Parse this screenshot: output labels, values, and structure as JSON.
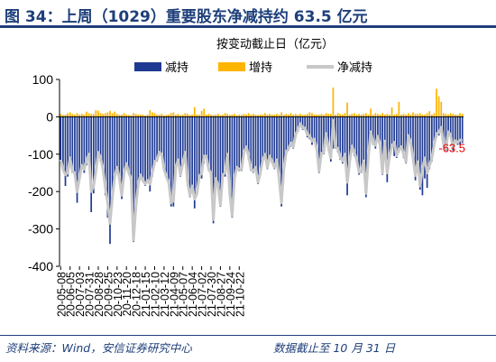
{
  "figure": {
    "title": "图 34：上周（1029）重要股东净减持约 63.5 亿元",
    "source": "资料来源：Wind，安信证券研究中心",
    "cutoff": "数据截止至 10 月 31 日"
  },
  "colors": {
    "decrease": "#1f3a93",
    "increase": "#ffb400",
    "net": "#c8c8c8",
    "callout": "#e00000",
    "frame": "#1e3f7a"
  },
  "chart_data": {
    "type": "bar",
    "title": "按变动截止日（亿元）",
    "legend": {
      "placement": "top-right",
      "entries": [
        "减持",
        "增持",
        "净减持"
      ]
    },
    "ylim": [
      -400,
      100
    ],
    "yticks": [
      100,
      0,
      -100,
      -200,
      -300,
      -400
    ],
    "xtick_labels": [
      "20-05-08",
      "20-06-05",
      "20-07-03",
      "20-07-31",
      "20-08-28",
      "20-09-25",
      "20-10-23",
      "20-11-20",
      "20-12-18",
      "21-01-15",
      "21-02-10",
      "21-03-12",
      "21-04-09",
      "21-05-07",
      "21-06-04",
      "21-07-02",
      "21-07-30",
      "21-08-27",
      "21-09-24",
      "21-10-22"
    ],
    "ticks_every": 4,
    "annotation": "-63.5",
    "series": [
      {
        "name": "减持",
        "values": [
          -115,
          -140,
          -185,
          -160,
          -115,
          -150,
          -160,
          -230,
          -170,
          -135,
          -150,
          -130,
          -110,
          -255,
          -205,
          -150,
          -105,
          -120,
          -150,
          -210,
          -270,
          -340,
          -220,
          -170,
          -140,
          -170,
          -220,
          -160,
          -130,
          -155,
          -175,
          -335,
          -250,
          -185,
          -160,
          -175,
          -185,
          -175,
          -200,
          -160,
          -130,
          -120,
          -100,
          -105,
          -145,
          -165,
          -180,
          -240,
          -240,
          -140,
          -120,
          -160,
          -130,
          -105,
          -185,
          -215,
          -190,
          -245,
          -210,
          -165,
          -165,
          -125,
          -110,
          -145,
          -155,
          -285,
          -170,
          -190,
          -240,
          -160,
          -160,
          -105,
          -210,
          -270,
          -170,
          -140,
          -145,
          -145,
          -100,
          -85,
          -115,
          -145,
          -150,
          -140,
          -180,
          -155,
          -120,
          -110,
          -140,
          -110,
          -125,
          -140,
          -120,
          -170,
          -240,
          -145,
          -100,
          -90,
          -80,
          -85,
          -55,
          -40,
          -25,
          -35,
          -35,
          -55,
          -60,
          -75,
          -65,
          -90,
          -150,
          -105,
          -100,
          -55,
          -90,
          -120,
          -85,
          -85,
          -95,
          -115,
          -125,
          -110,
          -210,
          -125,
          -85,
          -105,
          -120,
          -155,
          -150,
          -125,
          -215,
          -110,
          -60,
          -75,
          -85,
          -60,
          -80,
          -155,
          -70,
          -175,
          -110,
          -85,
          -105,
          -110,
          -95,
          -85,
          -110,
          -125,
          -60,
          -75,
          -115,
          -170,
          -125,
          -195,
          -210,
          -165,
          -190,
          -140,
          -120,
          -80,
          -55,
          -50,
          -35,
          -80,
          -90,
          -45,
          -55,
          -90,
          -70,
          -75,
          -75,
          -70
        ]
      },
      {
        "name": "增持",
        "values": [
          8,
          5,
          6,
          10,
          12,
          8,
          6,
          10,
          6,
          8,
          6,
          14,
          10,
          8,
          8,
          18,
          16,
          10,
          8,
          10,
          12,
          16,
          10,
          14,
          8,
          6,
          6,
          10,
          6,
          5,
          4,
          10,
          8,
          6,
          6,
          6,
          4,
          6,
          18,
          12,
          10,
          6,
          6,
          8,
          4,
          5,
          6,
          10,
          12,
          6,
          8,
          4,
          6,
          10,
          8,
          5,
          6,
          26,
          6,
          6,
          16,
          22,
          6,
          8,
          6,
          5,
          6,
          8,
          4,
          6,
          10,
          8,
          5,
          6,
          8,
          4,
          6,
          5,
          8,
          6,
          10,
          6,
          8,
          6,
          5,
          6,
          6,
          10,
          6,
          8,
          6,
          6,
          8,
          6,
          12,
          6,
          8,
          6,
          10,
          6,
          8,
          6,
          8,
          5,
          6,
          8,
          12,
          10,
          6,
          6,
          6,
          8,
          6,
          10,
          8,
          8,
          78,
          6,
          10,
          8,
          6,
          10,
          38,
          6,
          8,
          10,
          6,
          8,
          6,
          8,
          10,
          6,
          22,
          6,
          10,
          8,
          6,
          10,
          6,
          8,
          6,
          25,
          6,
          8,
          40,
          6,
          8,
          6,
          10,
          6,
          12,
          8,
          8,
          10,
          6,
          6,
          10,
          15,
          6,
          10,
          75,
          55,
          40,
          10,
          8,
          6,
          10,
          8,
          6,
          6,
          10,
          8,
          8,
          10,
          8,
          6,
          14
        ]
      },
      {
        "name": "净减持",
        "values": [
          -115,
          -140,
          -155,
          -150,
          -110,
          -145,
          -150,
          -200,
          -165,
          -130,
          -140,
          -115,
          -100,
          -200,
          -185,
          -145,
          -95,
          -110,
          -140,
          -190,
          -230,
          -285,
          -215,
          -160,
          -135,
          -165,
          -210,
          -150,
          -125,
          -150,
          -165,
          -330,
          -240,
          -180,
          -155,
          -170,
          -180,
          -170,
          -180,
          -150,
          -120,
          -115,
          -95,
          -100,
          -140,
          -160,
          -175,
          -230,
          -225,
          -135,
          -115,
          -155,
          -125,
          -95,
          -175,
          -210,
          -185,
          -220,
          -205,
          -160,
          -150,
          -105,
          -105,
          -140,
          -150,
          -275,
          -165,
          -185,
          -235,
          -155,
          -150,
          -100,
          -205,
          -265,
          -165,
          -135,
          -140,
          -140,
          -95,
          -80,
          -105,
          -140,
          -145,
          -135,
          -175,
          -150,
          -115,
          -100,
          -135,
          -105,
          -120,
          -135,
          -115,
          -165,
          -230,
          -140,
          -95,
          -85,
          -70,
          -80,
          -48,
          -34,
          -18,
          -30,
          -30,
          -48,
          -50,
          -65,
          -60,
          -85,
          -145,
          -98,
          -95,
          -45,
          -82,
          -110,
          -10,
          -80,
          -85,
          -108,
          -118,
          -100,
          -175,
          -120,
          -78,
          -95,
          -115,
          -148,
          -145,
          -118,
          -205,
          -105,
          -40,
          -70,
          -76,
          -52,
          -75,
          -150,
          -65,
          -150,
          -105,
          -78,
          -68,
          -104,
          -88,
          -80,
          -100,
          -120,
          -50,
          -68,
          -110,
          -157,
          -120,
          -185,
          -140,
          -110,
          -150,
          -130,
          -112,
          -75,
          -45,
          -42,
          -28,
          -74,
          -84,
          -40,
          -48,
          -82,
          -64,
          -68,
          -62,
          -63.5
        ]
      }
    ]
  }
}
